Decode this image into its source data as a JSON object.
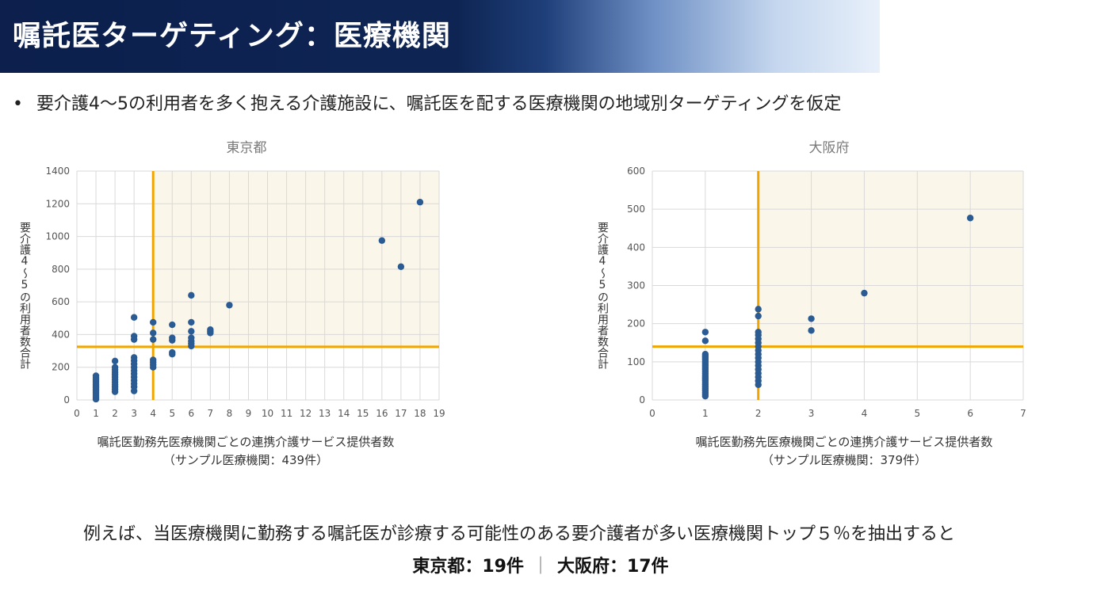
{
  "header": {
    "title": "嘱託医ターゲティング：医療機関"
  },
  "bullet": {
    "dot": "•",
    "text": "要介護4～5の利用者を多く抱える介護施設に、嘱託医を配する医療機関の地域別ターゲティングを仮定"
  },
  "summary": {
    "line": "例えば、当医療機関に勤務する嘱託医が診療する可能性のある要介護者が多い医療機関トップ５％を抽出すると",
    "tokyo_result": "東京都：19件",
    "separator": "｜",
    "osaka_result": "大阪府：17件"
  },
  "colors": {
    "point": "#2b5b93",
    "threshold": "#f0a500",
    "highlight_fill": "#fbf6ea",
    "grid": "#d9d9d9"
  },
  "chart_data": [
    {
      "type": "scatter",
      "title": "東京都",
      "xlabel": "嘱託医勤務先医療機関ごとの連携介護サービス提供者数",
      "xlabel_sub": "（サンプル医療機関：439件）",
      "ylabel": "要介護4～5の利用者数合計",
      "xlim": [
        0,
        19
      ],
      "ylim": [
        0,
        1400
      ],
      "xticks": [
        0,
        1,
        2,
        3,
        4,
        5,
        6,
        7,
        8,
        9,
        10,
        11,
        12,
        13,
        14,
        15,
        16,
        17,
        18,
        19
      ],
      "yticks": [
        0,
        200,
        400,
        600,
        800,
        1000,
        1200,
        1400
      ],
      "grid": true,
      "threshold_x": 4,
      "threshold_y": 325,
      "points": [
        [
          1,
          5
        ],
        [
          1,
          15
        ],
        [
          1,
          25
        ],
        [
          1,
          35
        ],
        [
          1,
          45
        ],
        [
          1,
          55
        ],
        [
          1,
          65
        ],
        [
          1,
          75
        ],
        [
          1,
          85
        ],
        [
          1,
          95
        ],
        [
          1,
          105
        ],
        [
          1,
          115
        ],
        [
          1,
          125
        ],
        [
          1,
          135
        ],
        [
          1,
          148
        ],
        [
          2,
          50
        ],
        [
          2,
          65
        ],
        [
          2,
          80
        ],
        [
          2,
          95
        ],
        [
          2,
          110
        ],
        [
          2,
          125
        ],
        [
          2,
          140
        ],
        [
          2,
          155
        ],
        [
          2,
          170
        ],
        [
          2,
          185
        ],
        [
          2,
          200
        ],
        [
          2,
          238
        ],
        [
          3,
          55
        ],
        [
          3,
          80
        ],
        [
          3,
          100
        ],
        [
          3,
          120
        ],
        [
          3,
          140
        ],
        [
          3,
          160
        ],
        [
          3,
          180
        ],
        [
          3,
          200
        ],
        [
          3,
          220
        ],
        [
          3,
          240
        ],
        [
          3,
          260
        ],
        [
          3,
          370
        ],
        [
          3,
          390
        ],
        [
          3,
          505
        ],
        [
          4,
          200
        ],
        [
          4,
          215
        ],
        [
          4,
          230
        ],
        [
          4,
          245
        ],
        [
          4,
          370
        ],
        [
          4,
          410
        ],
        [
          4,
          475
        ],
        [
          5,
          280
        ],
        [
          5,
          290
        ],
        [
          5,
          365
        ],
        [
          5,
          380
        ],
        [
          5,
          460
        ],
        [
          6,
          330
        ],
        [
          6,
          345
        ],
        [
          6,
          360
        ],
        [
          6,
          380
        ],
        [
          6,
          420
        ],
        [
          6,
          475
        ],
        [
          6,
          640
        ],
        [
          7,
          410
        ],
        [
          7,
          420
        ],
        [
          7,
          430
        ],
        [
          8,
          580
        ],
        [
          16,
          975
        ],
        [
          17,
          815
        ],
        [
          18,
          1210
        ]
      ]
    },
    {
      "type": "scatter",
      "title": "大阪府",
      "xlabel": "嘱託医勤務先医療機関ごとの連携介護サービス提供者数",
      "xlabel_sub": "（サンプル医療機関：379件）",
      "ylabel": "要介護4～5の利用者数合計",
      "xlim": [
        0,
        7
      ],
      "ylim": [
        0,
        600
      ],
      "xticks": [
        0,
        1,
        2,
        3,
        4,
        5,
        6,
        7
      ],
      "yticks": [
        0,
        100,
        200,
        300,
        400,
        500,
        600
      ],
      "grid": true,
      "threshold_x": 2,
      "threshold_y": 140,
      "points": [
        [
          1,
          10
        ],
        [
          1,
          15
        ],
        [
          1,
          20
        ],
        [
          1,
          25
        ],
        [
          1,
          30
        ],
        [
          1,
          35
        ],
        [
          1,
          40
        ],
        [
          1,
          45
        ],
        [
          1,
          50
        ],
        [
          1,
          55
        ],
        [
          1,
          60
        ],
        [
          1,
          65
        ],
        [
          1,
          70
        ],
        [
          1,
          75
        ],
        [
          1,
          80
        ],
        [
          1,
          85
        ],
        [
          1,
          90
        ],
        [
          1,
          95
        ],
        [
          1,
          100
        ],
        [
          1,
          105
        ],
        [
          1,
          110
        ],
        [
          1,
          115
        ],
        [
          1,
          120
        ],
        [
          1,
          155
        ],
        [
          1,
          178
        ],
        [
          2,
          40
        ],
        [
          2,
          50
        ],
        [
          2,
          60
        ],
        [
          2,
          70
        ],
        [
          2,
          80
        ],
        [
          2,
          90
        ],
        [
          2,
          100
        ],
        [
          2,
          110
        ],
        [
          2,
          120
        ],
        [
          2,
          130
        ],
        [
          2,
          140
        ],
        [
          2,
          150
        ],
        [
          2,
          160
        ],
        [
          2,
          170
        ],
        [
          2,
          178
        ],
        [
          2,
          220
        ],
        [
          2,
          238
        ],
        [
          3,
          182
        ],
        [
          3,
          213
        ],
        [
          4,
          280
        ],
        [
          6,
          477
        ]
      ]
    }
  ]
}
